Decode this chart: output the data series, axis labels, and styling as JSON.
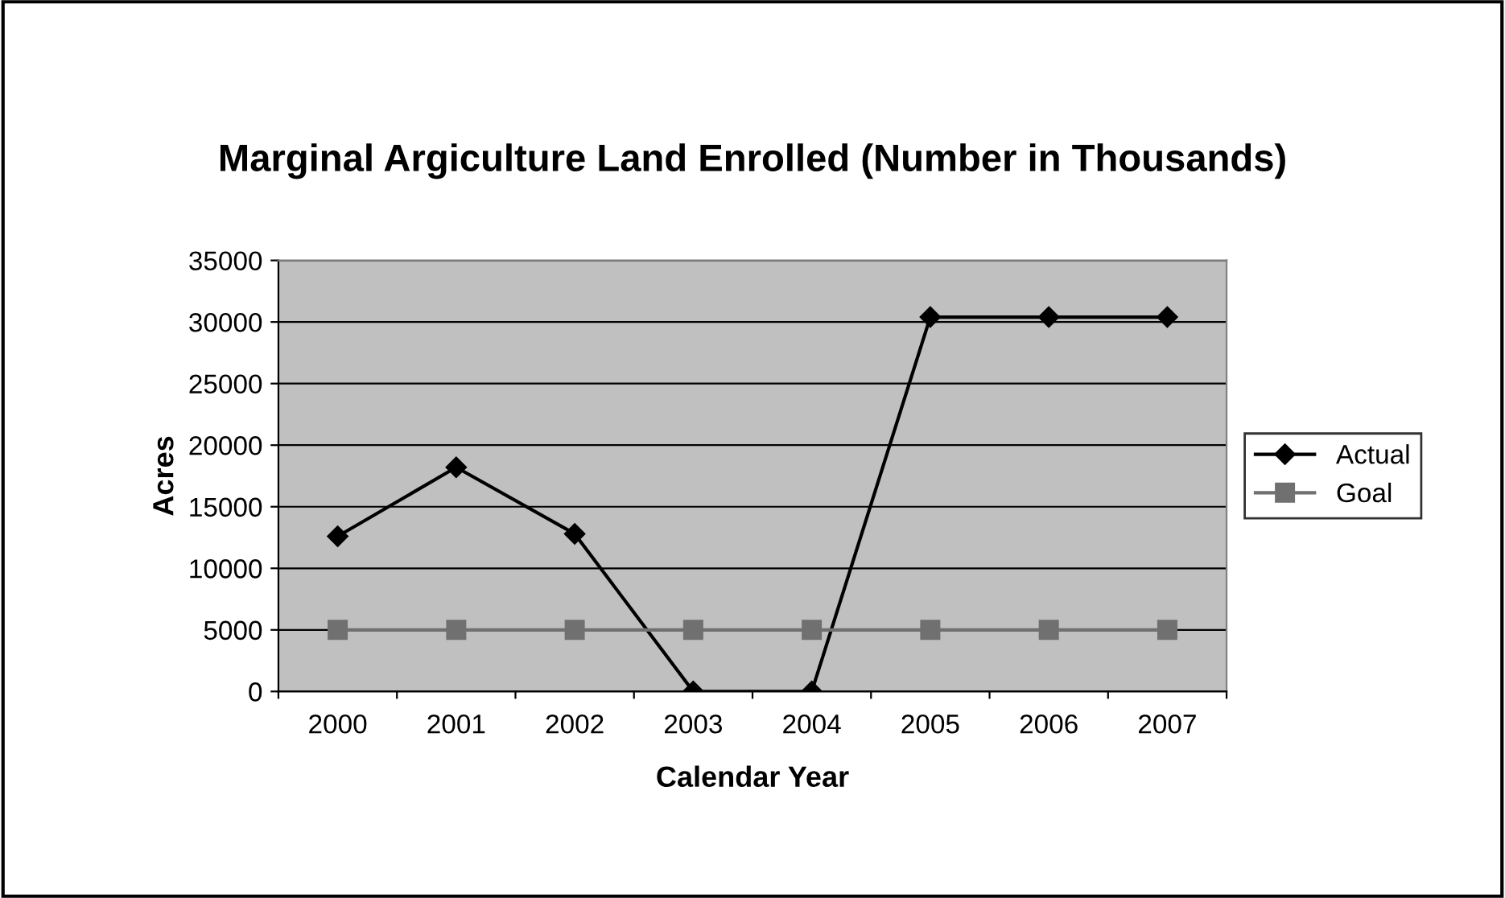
{
  "chart_data": {
    "type": "line",
    "title": "Marginal Argiculture Land Enrolled (Number in Thousands)",
    "xlabel": "Calendar Year",
    "ylabel": "Acres",
    "categories": [
      "2000",
      "2001",
      "2002",
      "2003",
      "2004",
      "2005",
      "2006",
      "2007"
    ],
    "series": [
      {
        "name": "Actual",
        "color": "#000000",
        "marker": "diamond",
        "values": [
          12600,
          18200,
          12800,
          0,
          0,
          30400,
          30400,
          30400
        ]
      },
      {
        "name": "Goal",
        "color": "#707070",
        "marker": "square",
        "values": [
          5000,
          5000,
          5000,
          5000,
          5000,
          5000,
          5000,
          5000
        ]
      }
    ],
    "ylim": [
      0,
      35000
    ],
    "yticks": [
      0,
      5000,
      10000,
      15000,
      20000,
      25000,
      30000,
      35000
    ],
    "grid": "y",
    "legend": "right",
    "line_style": "solid"
  }
}
